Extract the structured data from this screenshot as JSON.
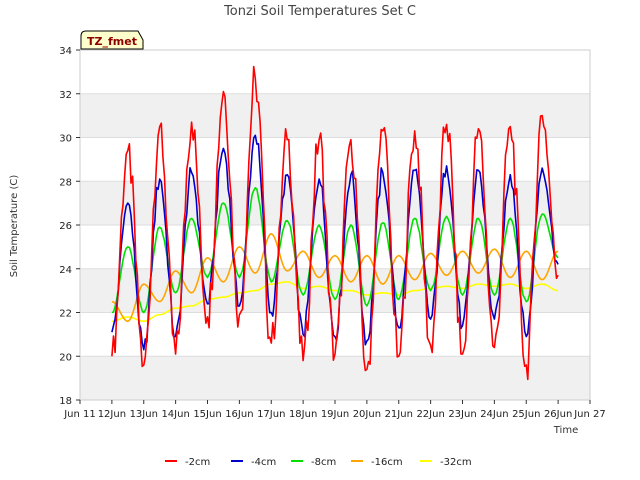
{
  "chart_data": {
    "type": "line",
    "title": "Tonzi Soil Temperatures Set C",
    "xlabel": "Time",
    "ylabel": "Soil Temperature (C)",
    "badge": "TZ_fmet",
    "xlim": [
      "Jun 11",
      "Jun 27"
    ],
    "ylim": [
      18,
      34
    ],
    "x_ticks": [
      "Jun 11",
      "12Jun",
      "13Jun",
      "14Jun",
      "15Jun",
      "16Jun",
      "17Jun",
      "18Jun",
      "19Jun",
      "20Jun",
      "21Jun",
      "22Jun",
      "23Jun",
      "24Jun",
      "25Jun",
      "26Jun",
      "Jun 27"
    ],
    "y_ticks": [
      18,
      20,
      22,
      24,
      26,
      28,
      30,
      32,
      34
    ],
    "grid": true,
    "legend_position": "bottom",
    "x": [
      "Jun 12 00:00",
      "Jun 12 12:00",
      "Jun 13 00:00",
      "Jun 13 12:00",
      "Jun 14 00:00",
      "Jun 14 12:00",
      "Jun 15 00:00",
      "Jun 15 12:00",
      "Jun 16 00:00",
      "Jun 16 12:00",
      "Jun 17 00:00",
      "Jun 17 12:00",
      "Jun 18 00:00",
      "Jun 18 12:00",
      "Jun 19 00:00",
      "Jun 19 12:00",
      "Jun 20 00:00",
      "Jun 20 12:00",
      "Jun 21 00:00",
      "Jun 21 12:00",
      "Jun 22 00:00",
      "Jun 22 12:00",
      "Jun 23 00:00",
      "Jun 23 12:00",
      "Jun 24 00:00",
      "Jun 24 12:00",
      "Jun 25 00:00",
      "Jun 25 12:00",
      "Jun 26 00:00"
    ],
    "series": [
      {
        "name": "-2cm",
        "color": "#ff0000",
        "values": [
          20.0,
          29.4,
          19.6,
          30.5,
          20.1,
          30.7,
          21.8,
          32.1,
          21.9,
          32.7,
          20.6,
          29.9,
          19.8,
          29.9,
          20.1,
          29.9,
          19.4,
          30.3,
          20.0,
          30.3,
          20.5,
          30.6,
          20.1,
          30.4,
          20.4,
          30.5,
          19.6,
          31.0,
          23.7
        ]
      },
      {
        "name": "-4cm",
        "color": "#0000cc",
        "values": [
          21.1,
          27.0,
          20.3,
          28.1,
          20.9,
          28.4,
          22.4,
          29.5,
          22.3,
          30.1,
          22.0,
          28.3,
          21.0,
          28.1,
          20.9,
          28.3,
          20.7,
          28.4,
          21.3,
          28.5,
          21.7,
          28.7,
          21.4,
          28.5,
          21.7,
          28.3,
          20.9,
          28.6,
          24.2
        ]
      },
      {
        "name": "-8cm",
        "color": "#00e000",
        "values": [
          22.0,
          25.0,
          22.0,
          25.9,
          22.9,
          26.3,
          23.6,
          27.0,
          23.6,
          27.7,
          23.4,
          26.2,
          22.8,
          26.0,
          22.6,
          26.0,
          22.3,
          26.1,
          22.6,
          26.3,
          23.0,
          26.4,
          22.8,
          26.3,
          22.8,
          26.3,
          22.5,
          26.5,
          24.5
        ]
      },
      {
        "name": "-16cm",
        "color": "#ffa500",
        "values": [
          22.5,
          21.6,
          23.3,
          22.5,
          23.9,
          22.9,
          24.5,
          23.4,
          25.0,
          23.8,
          25.6,
          23.9,
          24.8,
          23.6,
          24.6,
          23.4,
          24.6,
          23.3,
          24.6,
          23.5,
          24.7,
          23.7,
          24.8,
          23.8,
          24.9,
          23.6,
          24.8,
          23.5,
          24.8
        ]
      },
      {
        "name": "-32cm",
        "color": "#ffff00",
        "values": [
          21.6,
          21.8,
          21.6,
          21.9,
          22.2,
          22.3,
          22.6,
          22.7,
          22.9,
          23.0,
          23.3,
          23.4,
          23.1,
          23.2,
          23.0,
          23.0,
          22.8,
          22.9,
          22.8,
          23.0,
          23.1,
          23.2,
          23.1,
          23.3,
          23.2,
          23.3,
          23.1,
          23.3,
          23.0
        ]
      }
    ]
  }
}
